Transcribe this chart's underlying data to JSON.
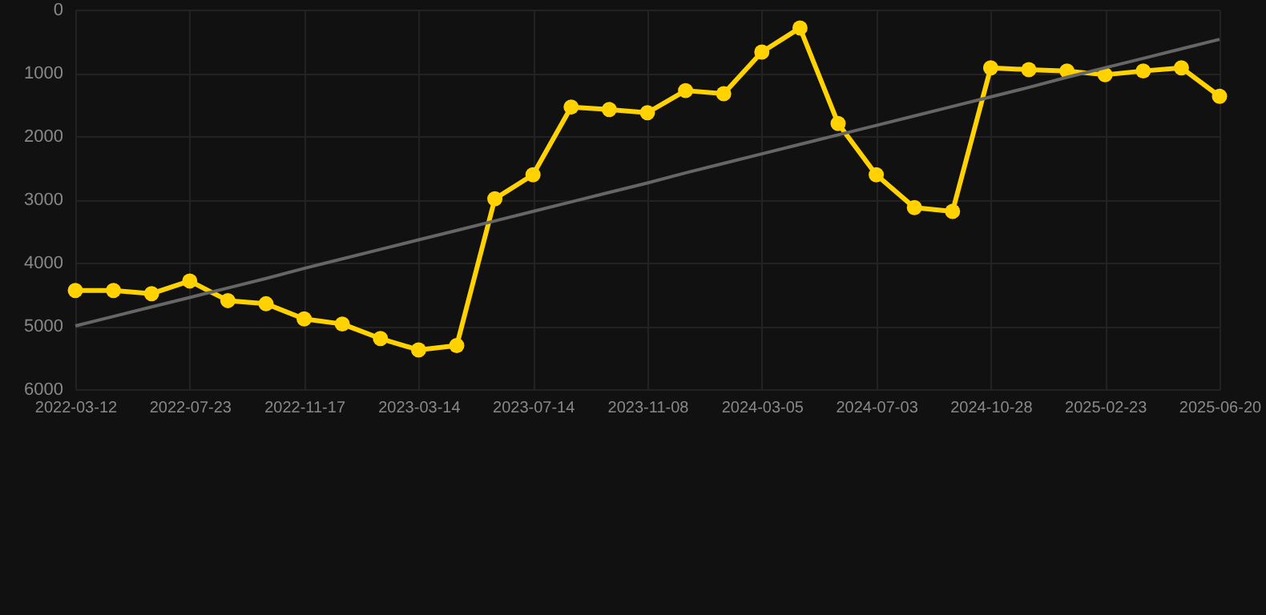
{
  "chart_data": {
    "type": "line",
    "categories": [
      "2022-03-12",
      null,
      null,
      "2022-07-23",
      null,
      null,
      "2022-11-17",
      null,
      null,
      "2023-03-14",
      null,
      null,
      "2023-07-14",
      null,
      null,
      "2023-11-08",
      null,
      null,
      "2024-03-05",
      null,
      null,
      "2024-07-03",
      null,
      null,
      "2024-10-28",
      null,
      null,
      "2025-02-23",
      null,
      null,
      "2025-06-20"
    ],
    "series": [
      {
        "color": "#ffd200",
        "values": [
          4440,
          4440,
          4490,
          4290,
          4600,
          4650,
          4890,
          4970,
          5200,
          5380,
          5310,
          2990,
          2610,
          1540,
          1580,
          1630,
          1280,
          1330,
          670,
          290,
          1800,
          2610,
          3130,
          3190,
          920,
          950,
          970,
          1030,
          970,
          920,
          1370
        ]
      },
      {
        "type": "line",
        "color": "#666666",
        "marker": "none",
        "values": [
          5000,
          4850,
          4700,
          4550,
          4400,
          4250,
          4090,
          3940,
          3790,
          3640,
          3490,
          3340,
          3190,
          3040,
          2890,
          2740,
          2580,
          2430,
          2280,
          2130,
          1980,
          1830,
          1680,
          1530,
          1380,
          1230,
          1070,
          920,
          770,
          620,
          470
        ]
      }
    ],
    "ylim": [
      6000,
      0
    ],
    "yticks": [
      0,
      1000,
      2000,
      3000,
      4000,
      5000,
      6000
    ],
    "grid": true,
    "marker": "circle",
    "line_style": "solid"
  }
}
